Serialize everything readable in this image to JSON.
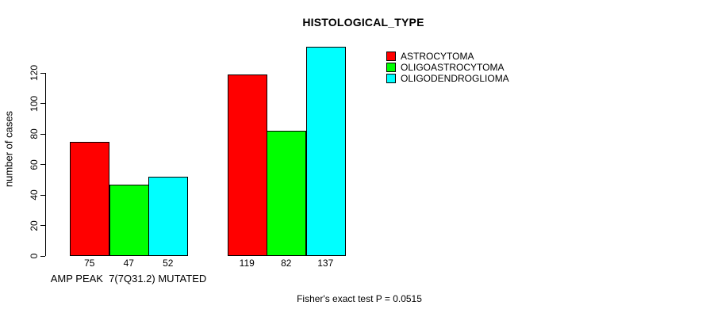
{
  "chart_data": {
    "type": "bar",
    "title": "HISTOLOGICAL_TYPE",
    "ylabel": "number of cases",
    "xlabel": "",
    "categories": [
      "AMP PEAK  7(7Q31.2) MUTATED",
      ""
    ],
    "series": [
      {
        "name": "ASTROCYTOMA",
        "color": "#ff0000",
        "values": [
          75,
          119
        ]
      },
      {
        "name": "OLIGOASTROCYTOMA",
        "color": "#00ff00",
        "values": [
          47,
          82
        ]
      },
      {
        "name": "OLIGODENDROGLIOMA",
        "color": "#00ffff",
        "values": [
          52,
          137
        ]
      }
    ],
    "yticks": [
      0,
      20,
      40,
      60,
      80,
      100,
      120
    ],
    "ylim": [
      0,
      137
    ],
    "grid": false,
    "legend_position": "top-right",
    "bar_value_labels": true,
    "annotation": "Fisher's exact test P = 0.0515"
  }
}
